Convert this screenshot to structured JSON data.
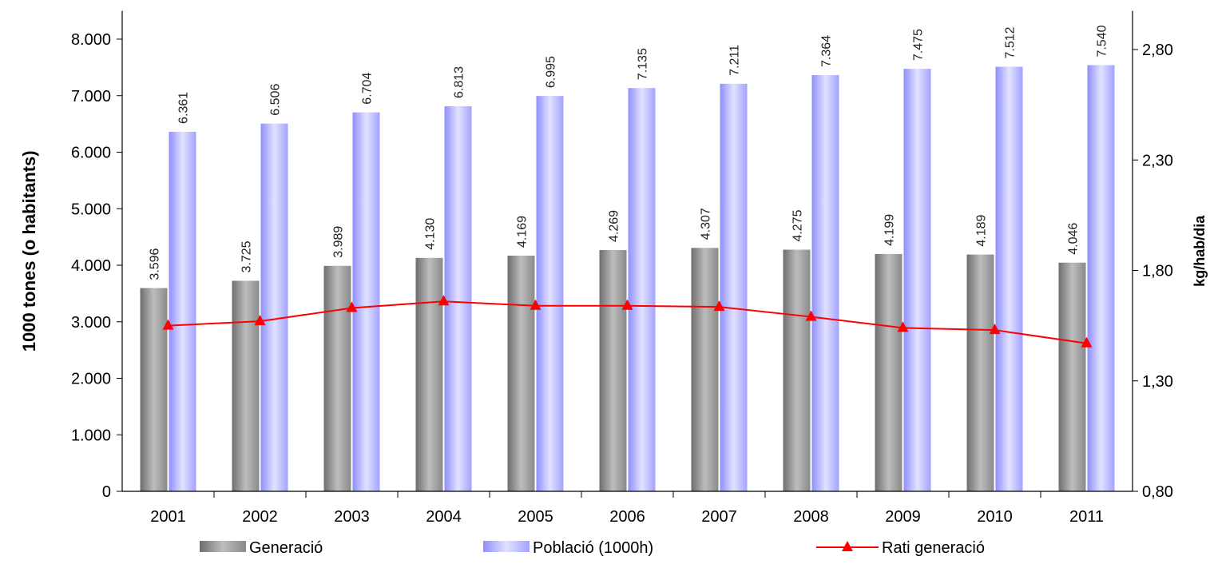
{
  "chart_data": {
    "type": "bar",
    "categories": [
      "2001",
      "2002",
      "2003",
      "2004",
      "2005",
      "2006",
      "2007",
      "2008",
      "2009",
      "2010",
      "2011"
    ],
    "series": [
      {
        "name": "Generació",
        "type": "bar",
        "axis": "left",
        "color": "#8c8c8c",
        "values": [
          3596,
          3725,
          3989,
          4130,
          4169,
          4269,
          4307,
          4275,
          4199,
          4189,
          4046
        ],
        "labels": [
          "3.596",
          "3.725",
          "3.989",
          "4.130",
          "4.169",
          "4.269",
          "4.307",
          "4.275",
          "4.199",
          "4.189",
          "4.046"
        ]
      },
      {
        "name": "Població (1000h)",
        "type": "bar",
        "axis": "left",
        "color": "#a9a9ff",
        "values": [
          6361,
          6506,
          6704,
          6813,
          6995,
          7135,
          7211,
          7364,
          7475,
          7512,
          7540
        ],
        "labels": [
          "6.361",
          "6.506",
          "6.704",
          "6.813",
          "6.995",
          "7.135",
          "7.211",
          "7.364",
          "7.475",
          "7.512",
          "7.540"
        ]
      },
      {
        "name": "Rati generació",
        "type": "line",
        "axis": "right",
        "color": "#ff0000",
        "values": [
          1.55,
          1.57,
          1.63,
          1.66,
          1.64,
          1.64,
          1.635,
          1.59,
          1.54,
          1.53,
          1.47
        ]
      }
    ],
    "y_left": {
      "label": "1000 tones (o habitants)",
      "ylim": [
        0,
        8500
      ],
      "ticks": [
        0,
        1000,
        2000,
        3000,
        4000,
        5000,
        6000,
        7000,
        8000
      ],
      "tick_labels": [
        "0",
        "1.000",
        "2.000",
        "3.000",
        "4.000",
        "5.000",
        "6.000",
        "7.000",
        "8.000"
      ]
    },
    "y_right": {
      "label": "kg/hab/dia",
      "ylim": [
        0.8,
        3.02
      ],
      "ticks": [
        0.8,
        1.3,
        1.8,
        2.3,
        2.8
      ],
      "tick_labels": [
        "0,80",
        "1,30",
        "1,80",
        "2,30",
        "2,80"
      ]
    },
    "grid": false,
    "legend": "bottom"
  }
}
